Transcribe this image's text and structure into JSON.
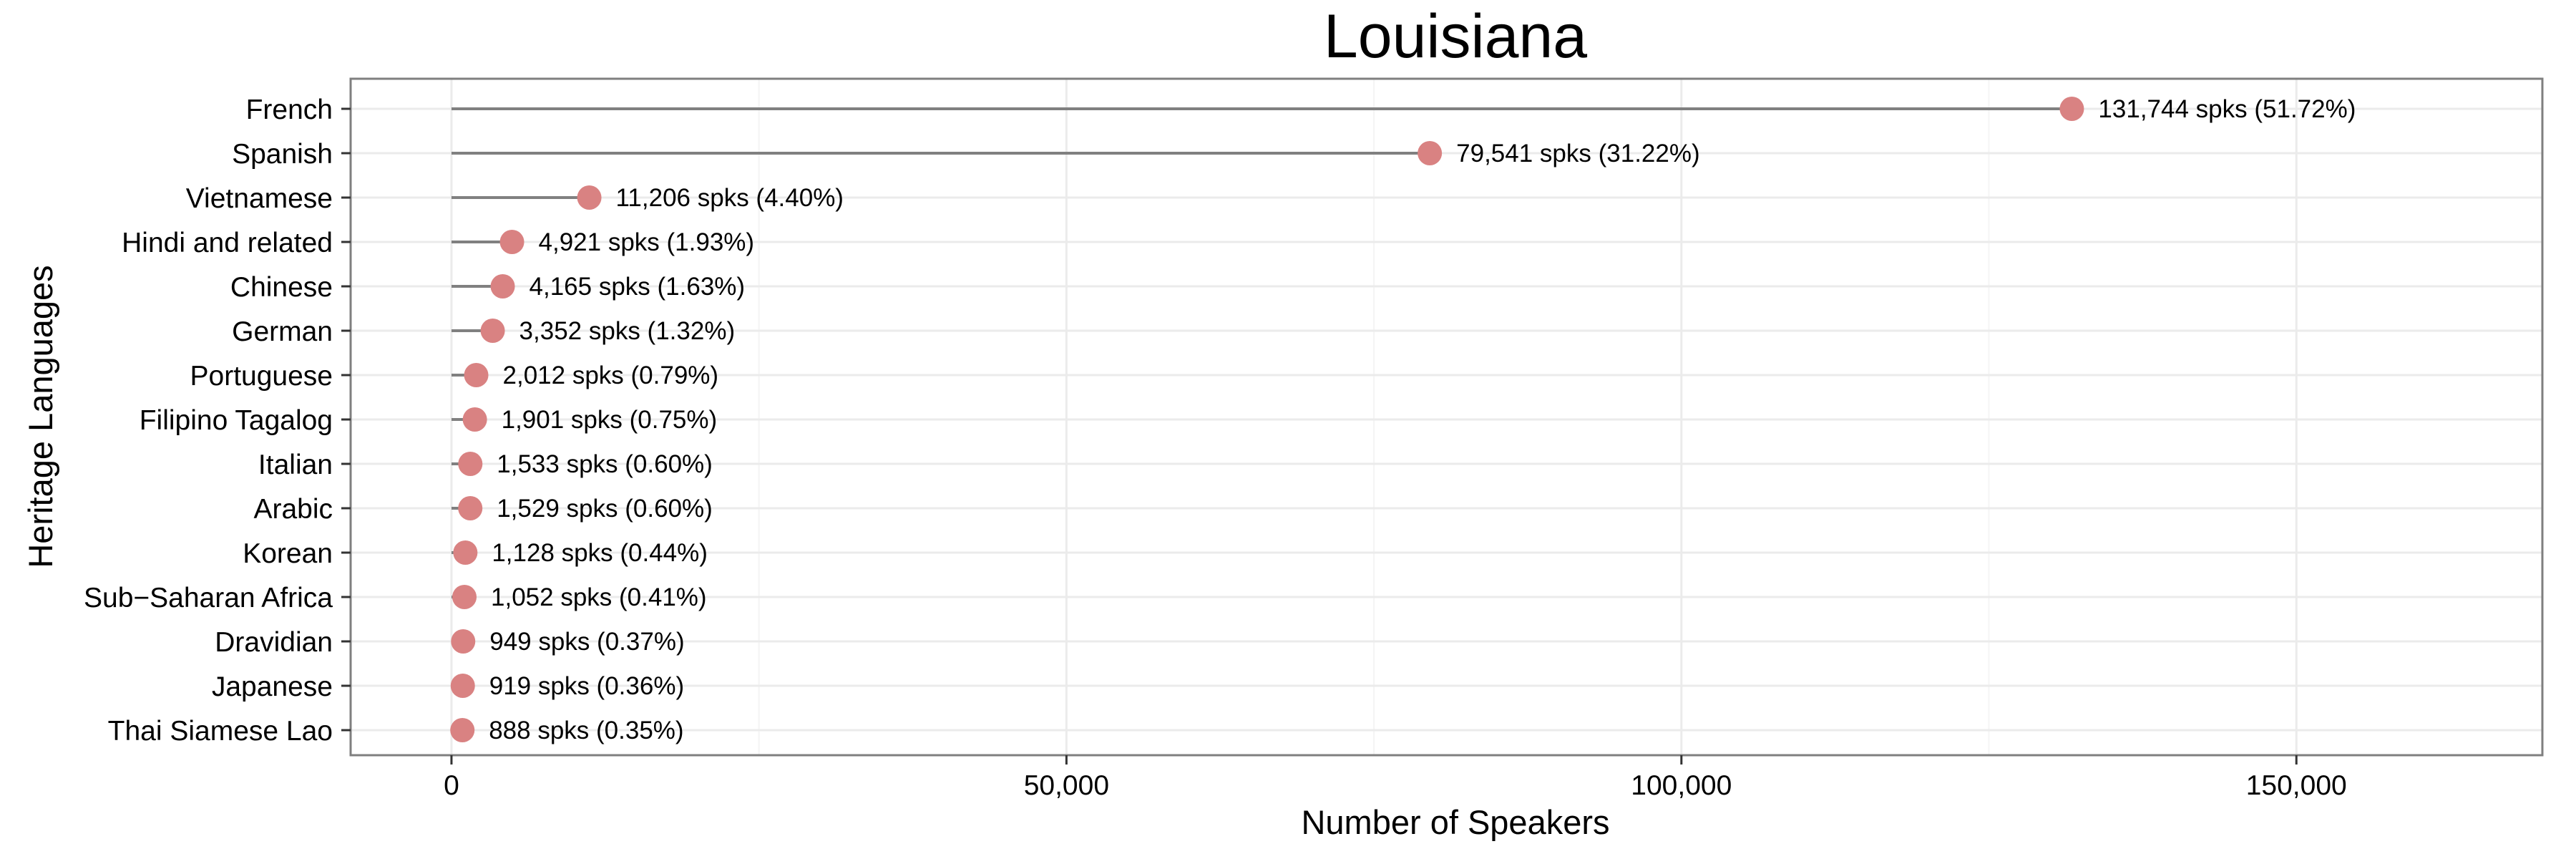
{
  "chart_data": {
    "type": "lollipop",
    "title": "Louisiana",
    "xlabel": "Number of Speakers",
    "ylabel": "Heritage Languages",
    "xlim": [
      -8200,
      170000
    ],
    "x_ticks": [
      0,
      50000,
      100000,
      150000
    ],
    "x_tick_labels": [
      "0",
      "50,000",
      "100,000",
      "150,000"
    ],
    "grid": true,
    "orientation": "horizontal",
    "colors": {
      "point": "#d98282",
      "stem": "#808080",
      "panel_border": "#7f7f7f",
      "grid_major": "#ebebeb",
      "grid_minor": "#f4f4f4"
    },
    "categories": [
      "French",
      "Spanish",
      "Vietnamese",
      "Hindi and related",
      "Chinese",
      "German",
      "Portuguese",
      "Filipino Tagalog",
      "Italian",
      "Arabic",
      "Korean",
      "Sub−Saharan Africa",
      "Dravidian",
      "Japanese",
      "Thai Siamese Lao"
    ],
    "values": [
      131744,
      79541,
      11206,
      4921,
      4165,
      3352,
      2012,
      1901,
      1533,
      1529,
      1128,
      1052,
      949,
      919,
      888
    ],
    "value_labels": [
      "131,744 spks (51.72%)",
      "79,541 spks (31.22%)",
      "11,206 spks (4.40%)",
      "4,921 spks (1.93%)",
      "4,165 spks (1.63%)",
      "3,352 spks (1.32%)",
      "2,012 spks (0.79%)",
      "1,901 spks (0.75%)",
      "1,533 spks (0.60%)",
      "1,529 spks (0.60%)",
      "1,128 spks (0.44%)",
      "1,052 spks (0.41%)",
      "949 spks (0.37%)",
      "919 spks (0.36%)",
      "888 spks (0.35%)"
    ]
  }
}
